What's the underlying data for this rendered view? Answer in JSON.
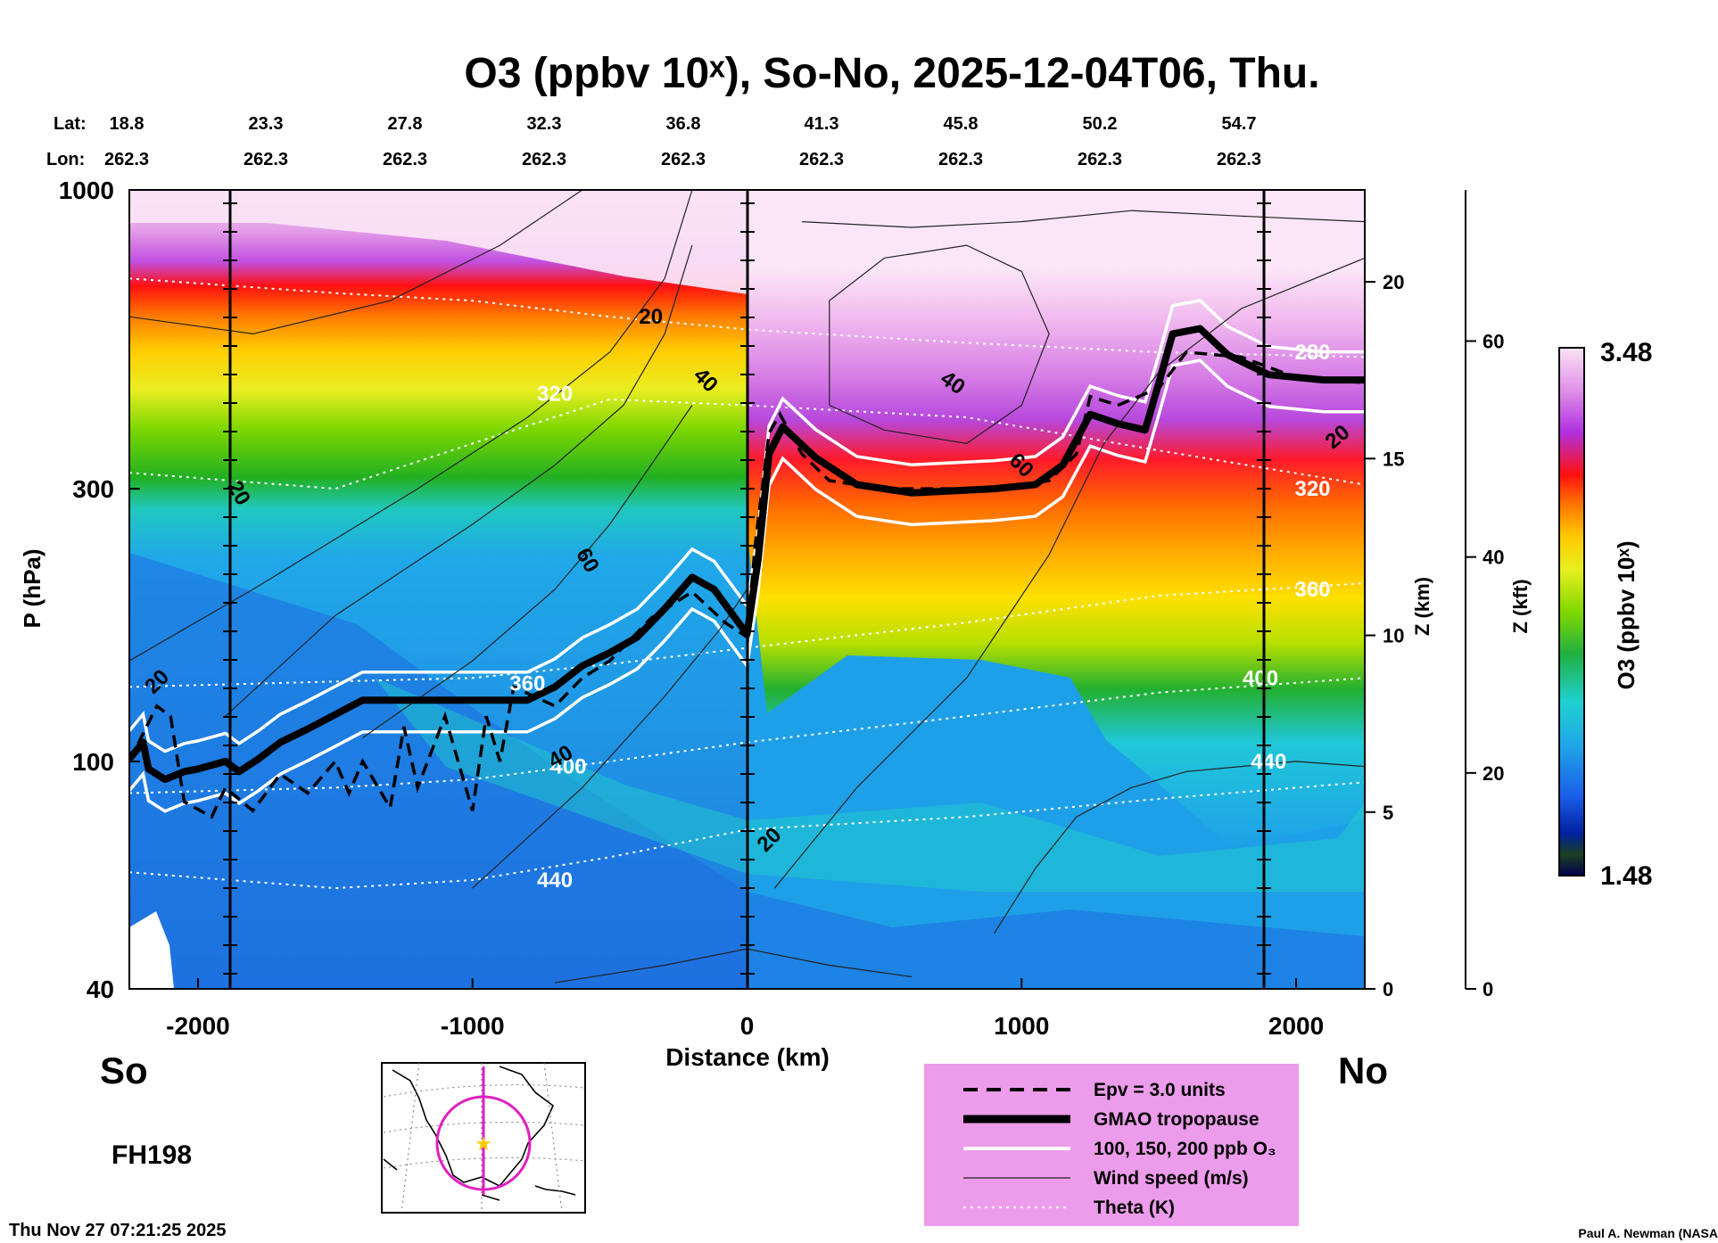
{
  "chart_data": {
    "type": "heatmap",
    "title": "O3 (ppbv 10ˣ), So-No, 2025-12-04T06, Thu.",
    "xlabel": "Distance (km)",
    "ylabel": "P (hPa)",
    "y2label": "Z (km)",
    "y3label": "Z (kft)",
    "colorbar_label": "O3 (ppbv 10ˣ)",
    "colorbar_min": "1.48",
    "colorbar_max": "3.48",
    "colorbar_range": [
      1.48,
      3.48
    ],
    "xlim": [
      -2250,
      2250
    ],
    "ylim": [
      1000,
      40
    ],
    "x_ticks": [
      -2000,
      -1000,
      0,
      1000,
      2000
    ],
    "x_tick_labels": [
      "-2000",
      "-1000",
      "0",
      "1000",
      "2000"
    ],
    "p_ticks": [
      1000,
      300,
      100,
      40
    ],
    "p_tick_labels": [
      "1000",
      "300",
      "100",
      "40"
    ],
    "zkm_ticks": [
      0,
      5,
      10,
      15,
      20
    ],
    "zkm_tick_labels": [
      "0",
      "5",
      "10",
      "15",
      "20"
    ],
    "zkft_ticks": [
      0,
      20,
      40,
      60
    ],
    "zkft_tick_labels": [
      "0",
      "20",
      "40",
      "60"
    ],
    "lat_label": "Lat:",
    "lon_label": "Lon:",
    "lat_values": [
      "18.8",
      "23.3",
      "27.8",
      "32.3",
      "36.8",
      "41.3",
      "45.8",
      "50.2",
      "54.7"
    ],
    "lon_values": [
      "262.3",
      "262.3",
      "262.3",
      "262.3",
      "262.3",
      "262.3",
      "262.3",
      "262.3",
      "262.3"
    ],
    "south_label": "So",
    "north_label": "No",
    "forecast_hour": "FH198",
    "timestamp": "Thu Nov 27 07:21:25 2025",
    "credit": "Paul A. Newman (NASA",
    "legend": [
      {
        "label": "Epv = 3.0 units",
        "style": "dashed"
      },
      {
        "label": "GMAO tropopause",
        "style": "thick"
      },
      {
        "label": "100, 150, 200 ppb O₃",
        "style": "white"
      },
      {
        "label": "Wind speed (m/s)",
        "style": "thin"
      },
      {
        "label": "Theta (K)",
        "style": "dotted"
      }
    ],
    "theta_labels": [
      {
        "value": "440",
        "x": -700,
        "p": 62
      },
      {
        "value": "400",
        "x": -650,
        "p": 98
      },
      {
        "value": "360",
        "x": -800,
        "p": 137
      },
      {
        "value": "320",
        "x": -700,
        "p": 440
      },
      {
        "value": "440",
        "x": 1900,
        "p": 100
      },
      {
        "value": "400",
        "x": 1870,
        "p": 140
      },
      {
        "value": "360",
        "x": 2060,
        "p": 200
      },
      {
        "value": "320",
        "x": 2060,
        "p": 300
      },
      {
        "value": "280",
        "x": 2060,
        "p": 520
      }
    ],
    "wind_labels": [
      {
        "value": "20",
        "x": -2150,
        "p": 138,
        "rot": -45
      },
      {
        "value": "20",
        "x": -1850,
        "p": 295,
        "rot": 60
      },
      {
        "value": "40",
        "x": -680,
        "p": 102,
        "rot": -30
      },
      {
        "value": "60",
        "x": -580,
        "p": 225,
        "rot": 60
      },
      {
        "value": "40",
        "x": -150,
        "p": 465,
        "rot": 45
      },
      {
        "value": "20",
        "x": -350,
        "p": 600,
        "rot": 0
      },
      {
        "value": "20",
        "x": 80,
        "p": 73,
        "rot": -45
      },
      {
        "value": "60",
        "x": 1000,
        "p": 330,
        "rot": 45
      },
      {
        "value": "40",
        "x": 750,
        "p": 460,
        "rot": 35
      },
      {
        "value": "20",
        "x": 2150,
        "p": 370,
        "rot": -40
      }
    ],
    "tropopause": [
      [
        -2250,
        101
      ],
      [
        -2200,
        108
      ],
      [
        -2180,
        97
      ],
      [
        -2120,
        93
      ],
      [
        -2050,
        96
      ],
      [
        -2000,
        97
      ],
      [
        -1900,
        100
      ],
      [
        -1850,
        96
      ],
      [
        -1780,
        101
      ],
      [
        -1700,
        108
      ],
      [
        -1600,
        114
      ],
      [
        -1400,
        128
      ],
      [
        -1000,
        128
      ],
      [
        -800,
        128
      ],
      [
        -700,
        135
      ],
      [
        -600,
        147
      ],
      [
        -500,
        155
      ],
      [
        -400,
        165
      ],
      [
        -300,
        185
      ],
      [
        -200,
        210
      ],
      [
        -120,
        200
      ],
      [
        0,
        167
      ],
      [
        40,
        225
      ],
      [
        80,
        345
      ],
      [
        130,
        385
      ],
      [
        250,
        340
      ],
      [
        400,
        305
      ],
      [
        600,
        295
      ],
      [
        900,
        300
      ],
      [
        1050,
        305
      ],
      [
        1150,
        330
      ],
      [
        1250,
        405
      ],
      [
        1350,
        390
      ],
      [
        1450,
        380
      ],
      [
        1500,
        460
      ],
      [
        1550,
        560
      ],
      [
        1650,
        572
      ],
      [
        1750,
        515
      ],
      [
        1900,
        475
      ],
      [
        2100,
        465
      ],
      [
        2250,
        465
      ]
    ],
    "epv3": [
      [
        -2250,
        100
      ],
      [
        -2150,
        125
      ],
      [
        -2100,
        120
      ],
      [
        -2050,
        85
      ],
      [
        -1950,
        80
      ],
      [
        -1900,
        90
      ],
      [
        -1800,
        82
      ],
      [
        -1700,
        95
      ],
      [
        -1600,
        88
      ],
      [
        -1500,
        100
      ],
      [
        -1450,
        88
      ],
      [
        -1400,
        100
      ],
      [
        -1300,
        83
      ],
      [
        -1250,
        115
      ],
      [
        -1200,
        90
      ],
      [
        -1100,
        120
      ],
      [
        -1000,
        82
      ],
      [
        -950,
        120
      ],
      [
        -900,
        100
      ],
      [
        -850,
        135
      ],
      [
        -700,
        125
      ],
      [
        -600,
        140
      ],
      [
        -500,
        150
      ],
      [
        -350,
        178
      ],
      [
        -200,
        198
      ],
      [
        -80,
        175
      ],
      [
        0,
        165
      ],
      [
        30,
        240
      ],
      [
        80,
        375
      ],
      [
        120,
        405
      ],
      [
        200,
        345
      ],
      [
        300,
        310
      ],
      [
        500,
        300
      ],
      [
        900,
        300
      ],
      [
        1100,
        310
      ],
      [
        1200,
        345
      ],
      [
        1250,
        435
      ],
      [
        1350,
        420
      ],
      [
        1500,
        450
      ],
      [
        1600,
        520
      ],
      [
        1800,
        510
      ],
      [
        2000,
        470
      ],
      [
        2250,
        460
      ]
    ],
    "theta_levels": [
      {
        "value": 440,
        "points": [
          [
            -2250,
            64
          ],
          [
            -1500,
            60
          ],
          [
            -1000,
            62
          ],
          [
            -500,
            68
          ],
          [
            0,
            76
          ],
          [
            800,
            80
          ],
          [
            1500,
            86
          ],
          [
            2250,
            92
          ]
        ]
      },
      {
        "value": 400,
        "points": [
          [
            -2250,
            88
          ],
          [
            -1500,
            90
          ],
          [
            -1000,
            93
          ],
          [
            -500,
            100
          ],
          [
            0,
            108
          ],
          [
            800,
            120
          ],
          [
            1500,
            132
          ],
          [
            2250,
            140
          ]
        ]
      },
      {
        "value": 360,
        "points": [
          [
            -2250,
            135
          ],
          [
            -1500,
            138
          ],
          [
            -1000,
            140
          ],
          [
            -500,
            148
          ],
          [
            0,
            158
          ],
          [
            800,
            175
          ],
          [
            1500,
            195
          ],
          [
            2250,
            205
          ]
        ]
      },
      {
        "value": 320,
        "points": [
          [
            -2250,
            320
          ],
          [
            -1500,
            300
          ],
          [
            -1000,
            360
          ],
          [
            -500,
            430
          ],
          [
            0,
            420
          ],
          [
            800,
            400
          ],
          [
            1500,
            350
          ],
          [
            2250,
            305
          ]
        ]
      },
      {
        "value": 280,
        "points": [
          [
            -2250,
            700
          ],
          [
            -1500,
            660
          ],
          [
            -1000,
            640
          ],
          [
            -500,
            600
          ],
          [
            0,
            570
          ],
          [
            800,
            540
          ],
          [
            1500,
            520
          ],
          [
            2250,
            510
          ]
        ]
      }
    ]
  }
}
